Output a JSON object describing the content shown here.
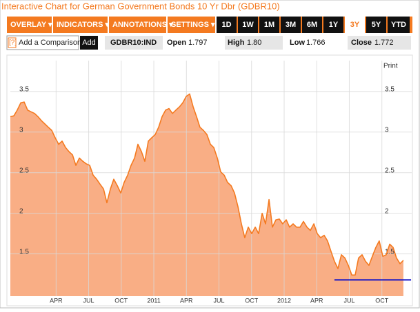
{
  "title": "Interactive Chart for German Government Bonds 10 Yr Dbr (GDBR10)",
  "menus": [
    "OVERLAY ▾",
    "INDICATORS ▾",
    "ANNOTATIONS ▾",
    "SETTINGS ▾"
  ],
  "ranges": [
    "1D",
    "1W",
    "1M",
    "3M",
    "6M",
    "1Y",
    "3Y",
    "5Y",
    "YTD"
  ],
  "selected_range": 6,
  "comparison": {
    "help": "[?]",
    "placeholder": "Add a Comparison",
    "button": "Add"
  },
  "quote": {
    "symbol": "GDBR10:IND",
    "open_label": "Open",
    "open": "1.797",
    "high_label": "High",
    "high": "1.80",
    "low_label": "Low",
    "low": "1.766",
    "close_label": "Close",
    "close": "1.772"
  },
  "print_label": "Print",
  "chart_data": {
    "type": "area",
    "color": "#f47a20",
    "fill_color": "#f9ae85",
    "grid": true,
    "x": [
      2009.899,
      2009.926,
      2009.952,
      2009.979,
      2010.005,
      2010.032,
      2010.058,
      2010.085,
      2010.111,
      2010.138,
      2010.164,
      2010.19,
      2010.217,
      2010.243,
      2010.27,
      2010.296,
      2010.323,
      2010.349,
      2010.376,
      2010.402,
      2010.429,
      2010.455,
      2010.481,
      2010.508,
      2010.534,
      2010.561,
      2010.587,
      2010.614,
      2010.64,
      2010.667,
      2010.693,
      2010.72,
      2010.746,
      2010.772,
      2010.799,
      2010.825,
      2010.852,
      2010.878,
      2010.905,
      2010.931,
      2010.958,
      2010.984,
      2011.011,
      2011.037,
      2011.063,
      2011.09,
      2011.116,
      2011.143,
      2011.169,
      2011.196,
      2011.222,
      2011.249,
      2011.275,
      2011.302,
      2011.328,
      2011.354,
      2011.381,
      2011.407,
      2011.434,
      2011.46,
      2011.487,
      2011.513,
      2011.54,
      2011.566,
      2011.593,
      2011.619,
      2011.646,
      2011.672,
      2011.698,
      2011.725,
      2011.751,
      2011.778,
      2011.804,
      2011.831,
      2011.857,
      2011.884,
      2011.91,
      2011.937,
      2011.963,
      2011.989,
      2012.016,
      2012.042,
      2012.069,
      2012.095,
      2012.122,
      2012.148,
      2012.175,
      2012.201,
      2012.228,
      2012.254,
      2012.28,
      2012.307,
      2012.333,
      2012.36,
      2012.386,
      2012.413,
      2012.439,
      2012.466,
      2012.492,
      2012.519,
      2012.545,
      2012.571,
      2012.598,
      2012.624,
      2012.651,
      2012.677,
      2012.704,
      2012.73,
      2012.757,
      2012.783,
      2012.81,
      2012.836,
      2012.862,
      2012.889,
      2012.915
    ],
    "values": [
      3.19,
      3.2,
      3.27,
      3.36,
      3.37,
      3.27,
      3.25,
      3.23,
      3.19,
      3.14,
      3.1,
      3.06,
      3.02,
      2.93,
      2.85,
      2.89,
      2.81,
      2.76,
      2.72,
      2.59,
      2.68,
      2.64,
      2.61,
      2.59,
      2.47,
      2.42,
      2.36,
      2.3,
      2.13,
      2.3,
      2.42,
      2.34,
      2.25,
      2.38,
      2.47,
      2.59,
      2.68,
      2.85,
      2.76,
      2.64,
      2.89,
      2.93,
      2.97,
      3.06,
      3.19,
      3.27,
      3.29,
      3.23,
      3.27,
      3.31,
      3.36,
      3.44,
      3.47,
      3.31,
      3.19,
      3.06,
      3.02,
      2.97,
      2.85,
      2.81,
      2.68,
      2.51,
      2.47,
      2.38,
      2.34,
      2.25,
      2.08,
      1.87,
      1.7,
      1.83,
      1.75,
      1.83,
      1.75,
      2.0,
      1.87,
      2.17,
      1.83,
      1.92,
      1.93,
      1.87,
      1.92,
      1.83,
      1.87,
      1.83,
      1.83,
      1.9,
      1.83,
      1.79,
      1.87,
      1.75,
      1.7,
      1.73,
      1.66,
      1.53,
      1.41,
      1.32,
      1.49,
      1.45,
      1.36,
      1.24,
      1.24,
      1.45,
      1.49,
      1.41,
      1.36,
      1.47,
      1.58,
      1.66,
      1.47,
      1.49,
      1.62,
      1.58,
      1.45,
      1.38,
      1.42
    ],
    "xlim": [
      2009.899,
      2012.979
    ],
    "ylim": [
      0.98,
      3.88
    ],
    "yticks": [
      1.5,
      2,
      2.5,
      3,
      3.5
    ],
    "xticks": [
      {
        "value": 2010.25,
        "label": "APR"
      },
      {
        "value": 2010.5,
        "label": "JUL"
      },
      {
        "value": 2010.75,
        "label": "OCT"
      },
      2011,
      {
        "value": 2011.25,
        "label": "APR"
      },
      {
        "value": 2011.5,
        "label": "JUL"
      },
      {
        "value": 2011.75,
        "label": "OCT"
      },
      2012,
      {
        "value": 2012.25,
        "label": "APR"
      },
      {
        "value": 2012.5,
        "label": "JUL"
      },
      {
        "value": 2012.75,
        "label": "OCT"
      }
    ],
    "hline": {
      "value": 1.18,
      "x": [
        2012.386,
        2012.974
      ],
      "color": "#1010c8"
    }
  }
}
